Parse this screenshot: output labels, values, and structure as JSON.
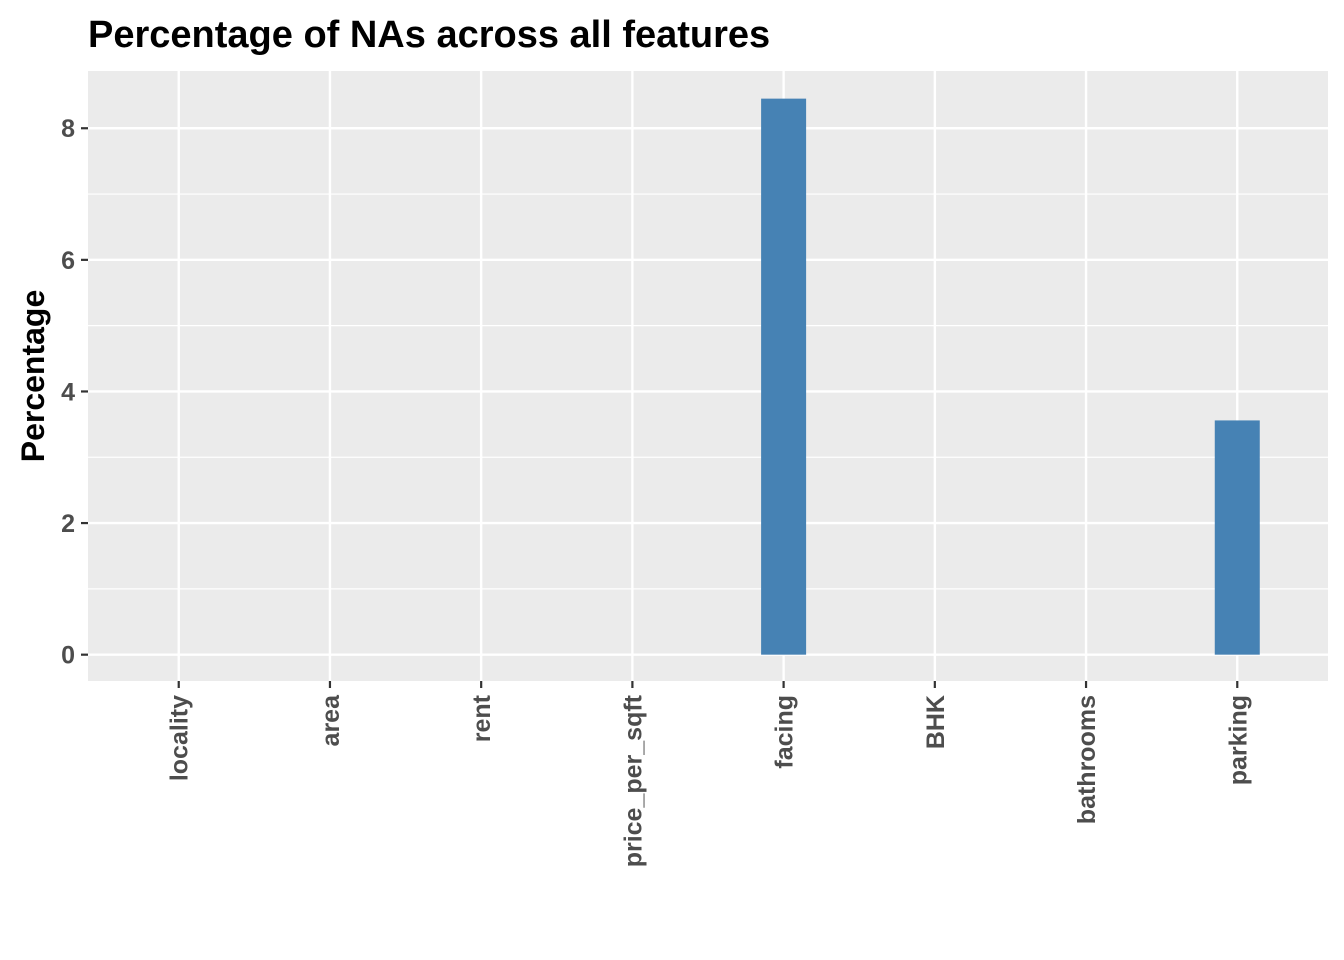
{
  "chart_data": {
    "type": "bar",
    "title": "Percentage of NAs across all features",
    "xlabel": "",
    "ylabel": "Percentage",
    "categories": [
      "locality",
      "area",
      "rent",
      "price_per_sqft",
      "facing",
      "BHK",
      "bathrooms",
      "parking"
    ],
    "values": [
      0,
      0,
      0,
      0,
      8.45,
      0,
      0,
      3.56
    ],
    "ylim": [
      -0.4,
      8.87
    ],
    "y_ticks": [
      0,
      2,
      4,
      6,
      8
    ],
    "x_tick_rotation": "vertical",
    "grid": true,
    "legend": "none",
    "colors": {
      "bar": "#4682b4",
      "panel": "#ebebeb",
      "grid": "#ffffff",
      "tick_text": "#4d4d4d",
      "title": "#000000"
    }
  }
}
